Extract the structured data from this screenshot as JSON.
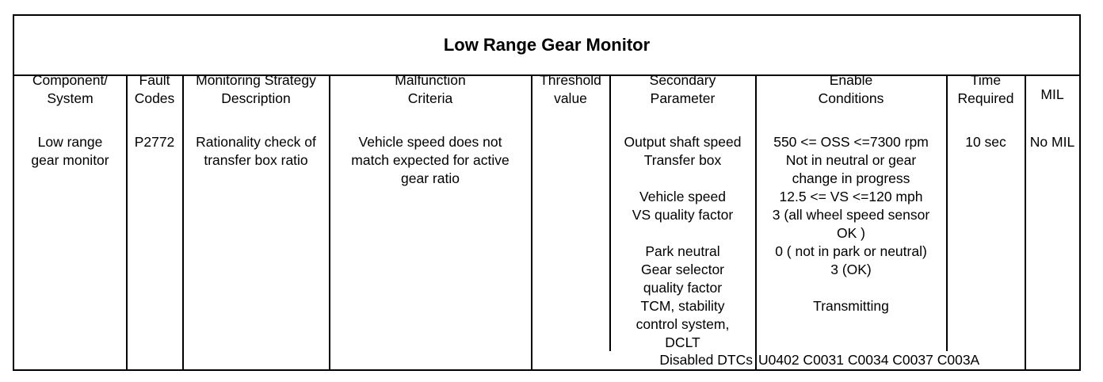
{
  "title": "Low Range Gear Monitor",
  "headers": {
    "component": [
      "Component/",
      "System"
    ],
    "fault_codes": [
      "Fault",
      "Codes"
    ],
    "strategy": [
      "Monitoring Strategy",
      "Description"
    ],
    "malfunction": [
      "Malfunction",
      "Criteria"
    ],
    "threshold": [
      "Threshold",
      "value"
    ],
    "secondary": [
      "Secondary",
      "Parameter"
    ],
    "enable": [
      "Enable",
      "Conditions"
    ],
    "time": [
      "Time",
      "Required"
    ],
    "mil": [
      "MIL"
    ]
  },
  "row": {
    "component": [
      "Low range",
      "gear monitor"
    ],
    "fault_code": "P2772",
    "strategy": [
      "Rationality check of",
      "transfer box ratio"
    ],
    "malfunction": [
      "Vehicle speed does not",
      "match expected for active",
      "gear ratio"
    ],
    "secondary": [
      "Output shaft speed",
      "Transfer box",
      "",
      "Vehicle speed",
      "VS quality factor",
      "",
      "Park neutral",
      "Gear selector",
      "quality factor",
      "TCM, stability",
      "control system,",
      "DCLT"
    ],
    "enable": [
      "550 <= OSS <=7300 rpm",
      "Not in neutral or gear",
      "change in progress",
      "12.5 <= VS <=120 mph",
      "3 (all wheel speed sensor",
      "OK )",
      "0 ( not in park or neutral)",
      "3 (OK)",
      "",
      "Transmitting"
    ],
    "time": "10 sec",
    "mil": "No MIL",
    "disabled_label": "Disabled DTCs",
    "disabled_codes": "U0402 C0031 C0034 C0037 C003A"
  }
}
